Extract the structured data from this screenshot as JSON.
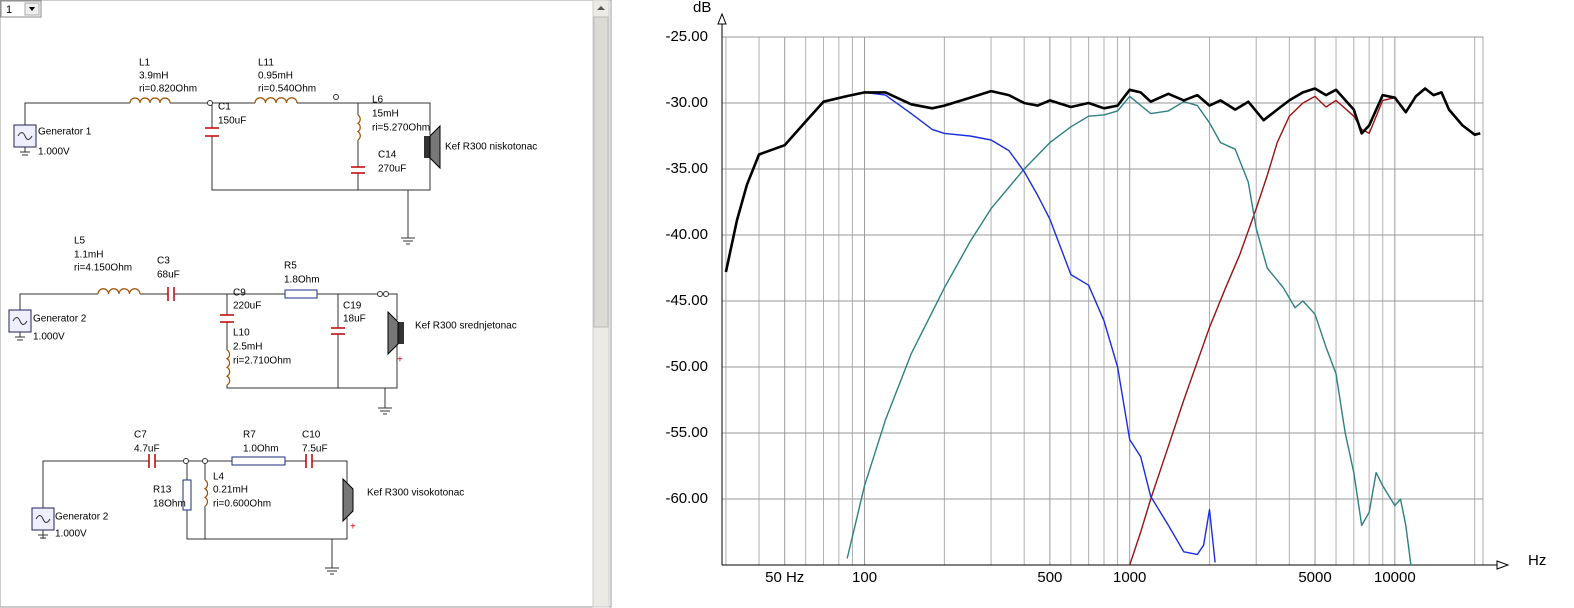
{
  "toolbar": {
    "selector": "1"
  },
  "schematic": {
    "labels": [
      "L1",
      "3.9mH",
      "ri=0.820Ohm",
      "L11",
      "0.95mH",
      "ri=0.540Ohm",
      "C1",
      "150uF",
      "L6",
      "15mH",
      "ri=5.270Ohm",
      "C14",
      "270uF",
      "Generator 1",
      "1.000V",
      "Kef R300 niskotonac",
      "L5",
      "1.1mH",
      "ri=4.150Ohm",
      "C3",
      "68uF",
      "R5",
      "1.8Ohm",
      "C9",
      "220uF",
      "C19",
      "18uF",
      "L10",
      "2.5mH",
      "ri=2.710Ohm",
      "Generator 2",
      "1.000V",
      "Kef R300 srednjetonac",
      "C7",
      "4.7uF",
      "R7",
      "1.0Ohm",
      "C10",
      "7.5uF",
      "R13",
      "18Ohm",
      "L4",
      "0.21mH",
      "ri=0.600Ohm",
      "Generator 2",
      "1.000V",
      "Kef R300 visokotonac"
    ]
  },
  "chart_data": {
    "type": "line",
    "xscale": "log",
    "grid": true,
    "ylabel": "dB",
    "xlabel": "Hz",
    "xlim": [
      29,
      21500
    ],
    "ylim": [
      -65,
      -25
    ],
    "xticks": [
      {
        "value": 50,
        "label": "50 Hz"
      },
      100,
      500,
      1000,
      5000,
      10000
    ],
    "xgrid": [
      30,
      40,
      60,
      70,
      80,
      90,
      200,
      300,
      400,
      600,
      700,
      800,
      900,
      2000,
      3000,
      4000,
      6000,
      7000,
      8000,
      9000,
      20000
    ],
    "yticks": [
      {
        "value": -25,
        "label": "-25.00"
      },
      {
        "value": -30,
        "label": "-30.00"
      },
      {
        "value": -35,
        "label": "-35.00"
      },
      {
        "value": -40,
        "label": "-40.00"
      },
      {
        "value": -45,
        "label": "-45.00"
      },
      {
        "value": -50,
        "label": "-50.00"
      },
      {
        "value": -55,
        "label": "-55.00"
      },
      {
        "value": -60,
        "label": "-60.00"
      }
    ],
    "series": [
      {
        "color": "#000000",
        "x": [
          30,
          33,
          36,
          40,
          50,
          60,
          70,
          85,
          100,
          120,
          150,
          180,
          200,
          250,
          300,
          350,
          400,
          450,
          500,
          600,
          700,
          800,
          900,
          1000,
          1100,
          1200,
          1400,
          1600,
          1800,
          2000,
          2200,
          2500,
          2800,
          3200,
          3600,
          4000,
          4500,
          5000,
          5500,
          6000,
          7000,
          7500,
          8000,
          9000,
          10000,
          11000,
          12000,
          13000,
          14000,
          15000,
          16000,
          18000,
          20000,
          21000
        ],
        "values": [
          -42.8,
          -38.9,
          -36.2,
          -33.9,
          -33.2,
          -31.4,
          -29.9,
          -29.5,
          -29.2,
          -29.2,
          -30.1,
          -30.4,
          -30.2,
          -29.6,
          -29.1,
          -29.4,
          -30.0,
          -30.2,
          -29.8,
          -30.3,
          -30.0,
          -30.4,
          -30.2,
          -29.0,
          -29.2,
          -29.9,
          -29.3,
          -29.8,
          -29.4,
          -30.2,
          -29.8,
          -30.5,
          -29.9,
          -31.3,
          -30.5,
          -29.8,
          -29.2,
          -28.9,
          -29.4,
          -29.0,
          -30.5,
          -32.3,
          -31.7,
          -29.4,
          -29.6,
          -30.7,
          -29.5,
          -28.9,
          -29.4,
          -29.2,
          -30.5,
          -31.7,
          -32.4,
          -32.3
        ]
      },
      {
        "color": "#1a2ee0",
        "x": [
          70,
          100,
          120,
          150,
          180,
          200,
          250,
          300,
          350,
          400,
          450,
          500,
          550,
          600,
          700,
          800,
          900,
          1000,
          1100,
          1200,
          1400,
          1600,
          1800,
          1900,
          2000,
          2100
        ],
        "values": [
          -29.9,
          -29.2,
          -29.4,
          -30.8,
          -32.0,
          -32.3,
          -32.5,
          -32.8,
          -33.6,
          -35.2,
          -37.0,
          -38.8,
          -41.0,
          -43.0,
          -43.8,
          -46.5,
          -50.0,
          -55.5,
          -56.8,
          -59.8,
          -62.0,
          -64.0,
          -64.2,
          -63.5,
          -60.8,
          -64.8
        ]
      },
      {
        "color": "#2e8080",
        "x": [
          86,
          100,
          120,
          150,
          200,
          250,
          300,
          400,
          500,
          600,
          700,
          800,
          900,
          1000,
          1200,
          1400,
          1600,
          1800,
          2000,
          2200,
          2500,
          2800,
          3000,
          3300,
          3800,
          4200,
          4500,
          5000,
          5500,
          6000,
          6500,
          7000,
          7500,
          8000,
          8500,
          9000,
          10000,
          10500,
          11000,
          11500
        ],
        "values": [
          -64.5,
          -59.0,
          -54.0,
          -49.0,
          -44.0,
          -40.5,
          -38.0,
          -35.0,
          -33.0,
          -31.8,
          -31.0,
          -30.9,
          -30.6,
          -29.5,
          -30.8,
          -30.6,
          -29.9,
          -30.2,
          -31.5,
          -33.0,
          -33.5,
          -36.0,
          -39.5,
          -42.5,
          -44.0,
          -45.5,
          -45.0,
          -46.0,
          -48.5,
          -50.5,
          -55.0,
          -58.0,
          -62.0,
          -61.0,
          -58.0,
          -59.0,
          -60.5,
          -60.0,
          -62.0,
          -65.0
        ]
      },
      {
        "color": "#9b1212",
        "x": [
          1000,
          1100,
          1200,
          1400,
          1600,
          2000,
          2300,
          2600,
          3000,
          3300,
          3600,
          4000,
          4500,
          5000,
          5500,
          6000,
          7000,
          7500,
          8000,
          9000,
          10000
        ],
        "values": [
          -65.0,
          -62.5,
          -60.0,
          -56.0,
          -52.5,
          -47.0,
          -44.0,
          -41.5,
          -38.0,
          -35.5,
          -33.0,
          -31.0,
          -30.0,
          -29.5,
          -30.3,
          -29.8,
          -31.0,
          -32.0,
          -32.3,
          -29.8,
          -29.6
        ]
      }
    ]
  }
}
